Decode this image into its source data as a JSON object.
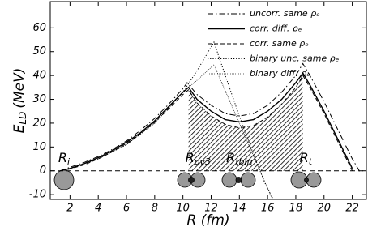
{
  "chart_data": {
    "type": "line",
    "x_label": "R (fm)",
    "y_label": "E",
    "y_label_sub": "LD",
    "y_label_unit": "(MeV)",
    "xlim": [
      0.6,
      23
    ],
    "ylim": [
      -12,
      71
    ],
    "xticks": [
      2,
      4,
      6,
      8,
      10,
      12,
      14,
      16,
      18,
      20,
      22
    ],
    "yticks": [
      -10,
      0,
      10,
      20,
      30,
      40,
      50,
      60
    ],
    "legend": "upper right",
    "series": [
      {
        "name": "uncorr. same ρₑ",
        "color": "#000000",
        "linestyle": "dashdot",
        "x": [
          1.3,
          2,
          3,
          4,
          5,
          6,
          7,
          8,
          9,
          10,
          10.3,
          11,
          12,
          13,
          14,
          15,
          16,
          17,
          18,
          18.5,
          19,
          20,
          21,
          22,
          22.6
        ],
        "values": [
          0,
          1.5,
          3.5,
          6,
          9,
          12.5,
          17,
          22,
          28,
          34.5,
          37,
          32,
          27.5,
          24,
          23,
          24,
          27.5,
          33,
          40,
          45,
          40,
          29,
          17,
          5,
          -1
        ]
      },
      {
        "name": "corr. diff. ρₑ",
        "color": "#000000",
        "linestyle": "solid",
        "x": [
          1.4,
          2,
          3,
          4,
          5,
          6,
          7,
          8,
          9,
          10,
          10.4,
          11,
          12,
          13,
          14,
          15,
          16,
          17,
          18,
          18.5,
          19,
          20,
          21,
          22
        ],
        "values": [
          0,
          1,
          3,
          5.5,
          8.5,
          12,
          16,
          21,
          27,
          33,
          35,
          30,
          25,
          21.5,
          20.5,
          21.5,
          25,
          30,
          37,
          41,
          36,
          25,
          13,
          1
        ]
      },
      {
        "name": "corr. same ρₑ",
        "color": "#000000",
        "linestyle": "dashed",
        "x": [
          1.4,
          2,
          3,
          4,
          5,
          6,
          7,
          8,
          9,
          10,
          10.4,
          11,
          12,
          13,
          14,
          15,
          16,
          17,
          18,
          18.5,
          19,
          20,
          21,
          22
        ],
        "values": [
          0,
          0.8,
          2.5,
          5,
          8,
          11.5,
          15.5,
          20.5,
          26,
          32,
          34,
          28.5,
          23,
          19.5,
          18,
          19,
          22.5,
          28,
          35,
          40,
          35,
          24,
          12,
          0
        ]
      },
      {
        "name": "binary unc. same ρₑ",
        "color": "#000000",
        "linestyle": "dotted",
        "x": [
          1.3,
          2,
          4,
          6,
          8,
          10,
          11,
          12.2,
          13,
          14,
          15,
          15.8,
          16.4
        ],
        "values": [
          0,
          1,
          5,
          11,
          20,
          33,
          42,
          54,
          40,
          23,
          7,
          -5,
          -12
        ]
      },
      {
        "name": "binary diff. ρₑ",
        "color": "#000000",
        "linestyle": "finedotted",
        "x": [
          1.3,
          2,
          4,
          6,
          8,
          10,
          11,
          12.2,
          13,
          14,
          15,
          16,
          16.3
        ],
        "values": [
          0,
          1,
          5,
          11,
          20,
          33,
          38,
          44.5,
          33.6,
          20,
          6.3,
          -7.3,
          -11.4
        ]
      }
    ],
    "shaded": {
      "series": 2,
      "from": 10,
      "to": 19
    },
    "annotations": [
      {
        "text": "R",
        "sub": "i",
        "x": 1.4
      },
      {
        "text": "R",
        "sub": "ov3",
        "x": 10.4
      },
      {
        "text": "R",
        "sub": "tbin",
        "x": 13.3
      },
      {
        "text": "R",
        "sub": "t",
        "x": 18.5
      }
    ]
  }
}
